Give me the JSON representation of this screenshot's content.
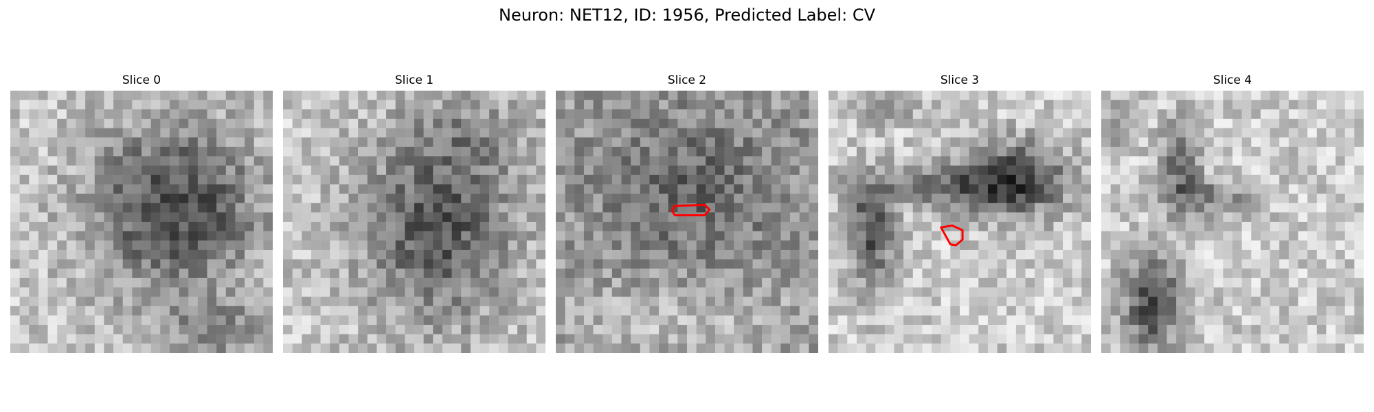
{
  "figure": {
    "title": "Neuron: NET12, ID: 1956, Predicted Label: CV"
  },
  "slices": [
    {
      "label": "Slice 0",
      "pattern": "dark-blob-right",
      "seed": 11,
      "has_outline": false
    },
    {
      "label": "Slice 1",
      "pattern": "dark-blob-center",
      "seed": 23,
      "has_outline": false
    },
    {
      "label": "Slice 2",
      "pattern": "noisy-mid",
      "seed": 37,
      "has_outline": true
    },
    {
      "label": "Slice 3",
      "pattern": "dark-bands",
      "seed": 51,
      "has_outline": true
    },
    {
      "label": "Slice 4",
      "pattern": "light-with-dark-streaks",
      "seed": 73,
      "has_outline": false
    }
  ],
  "colors": {
    "outline": "#ff0000",
    "background": "#ffffff"
  }
}
